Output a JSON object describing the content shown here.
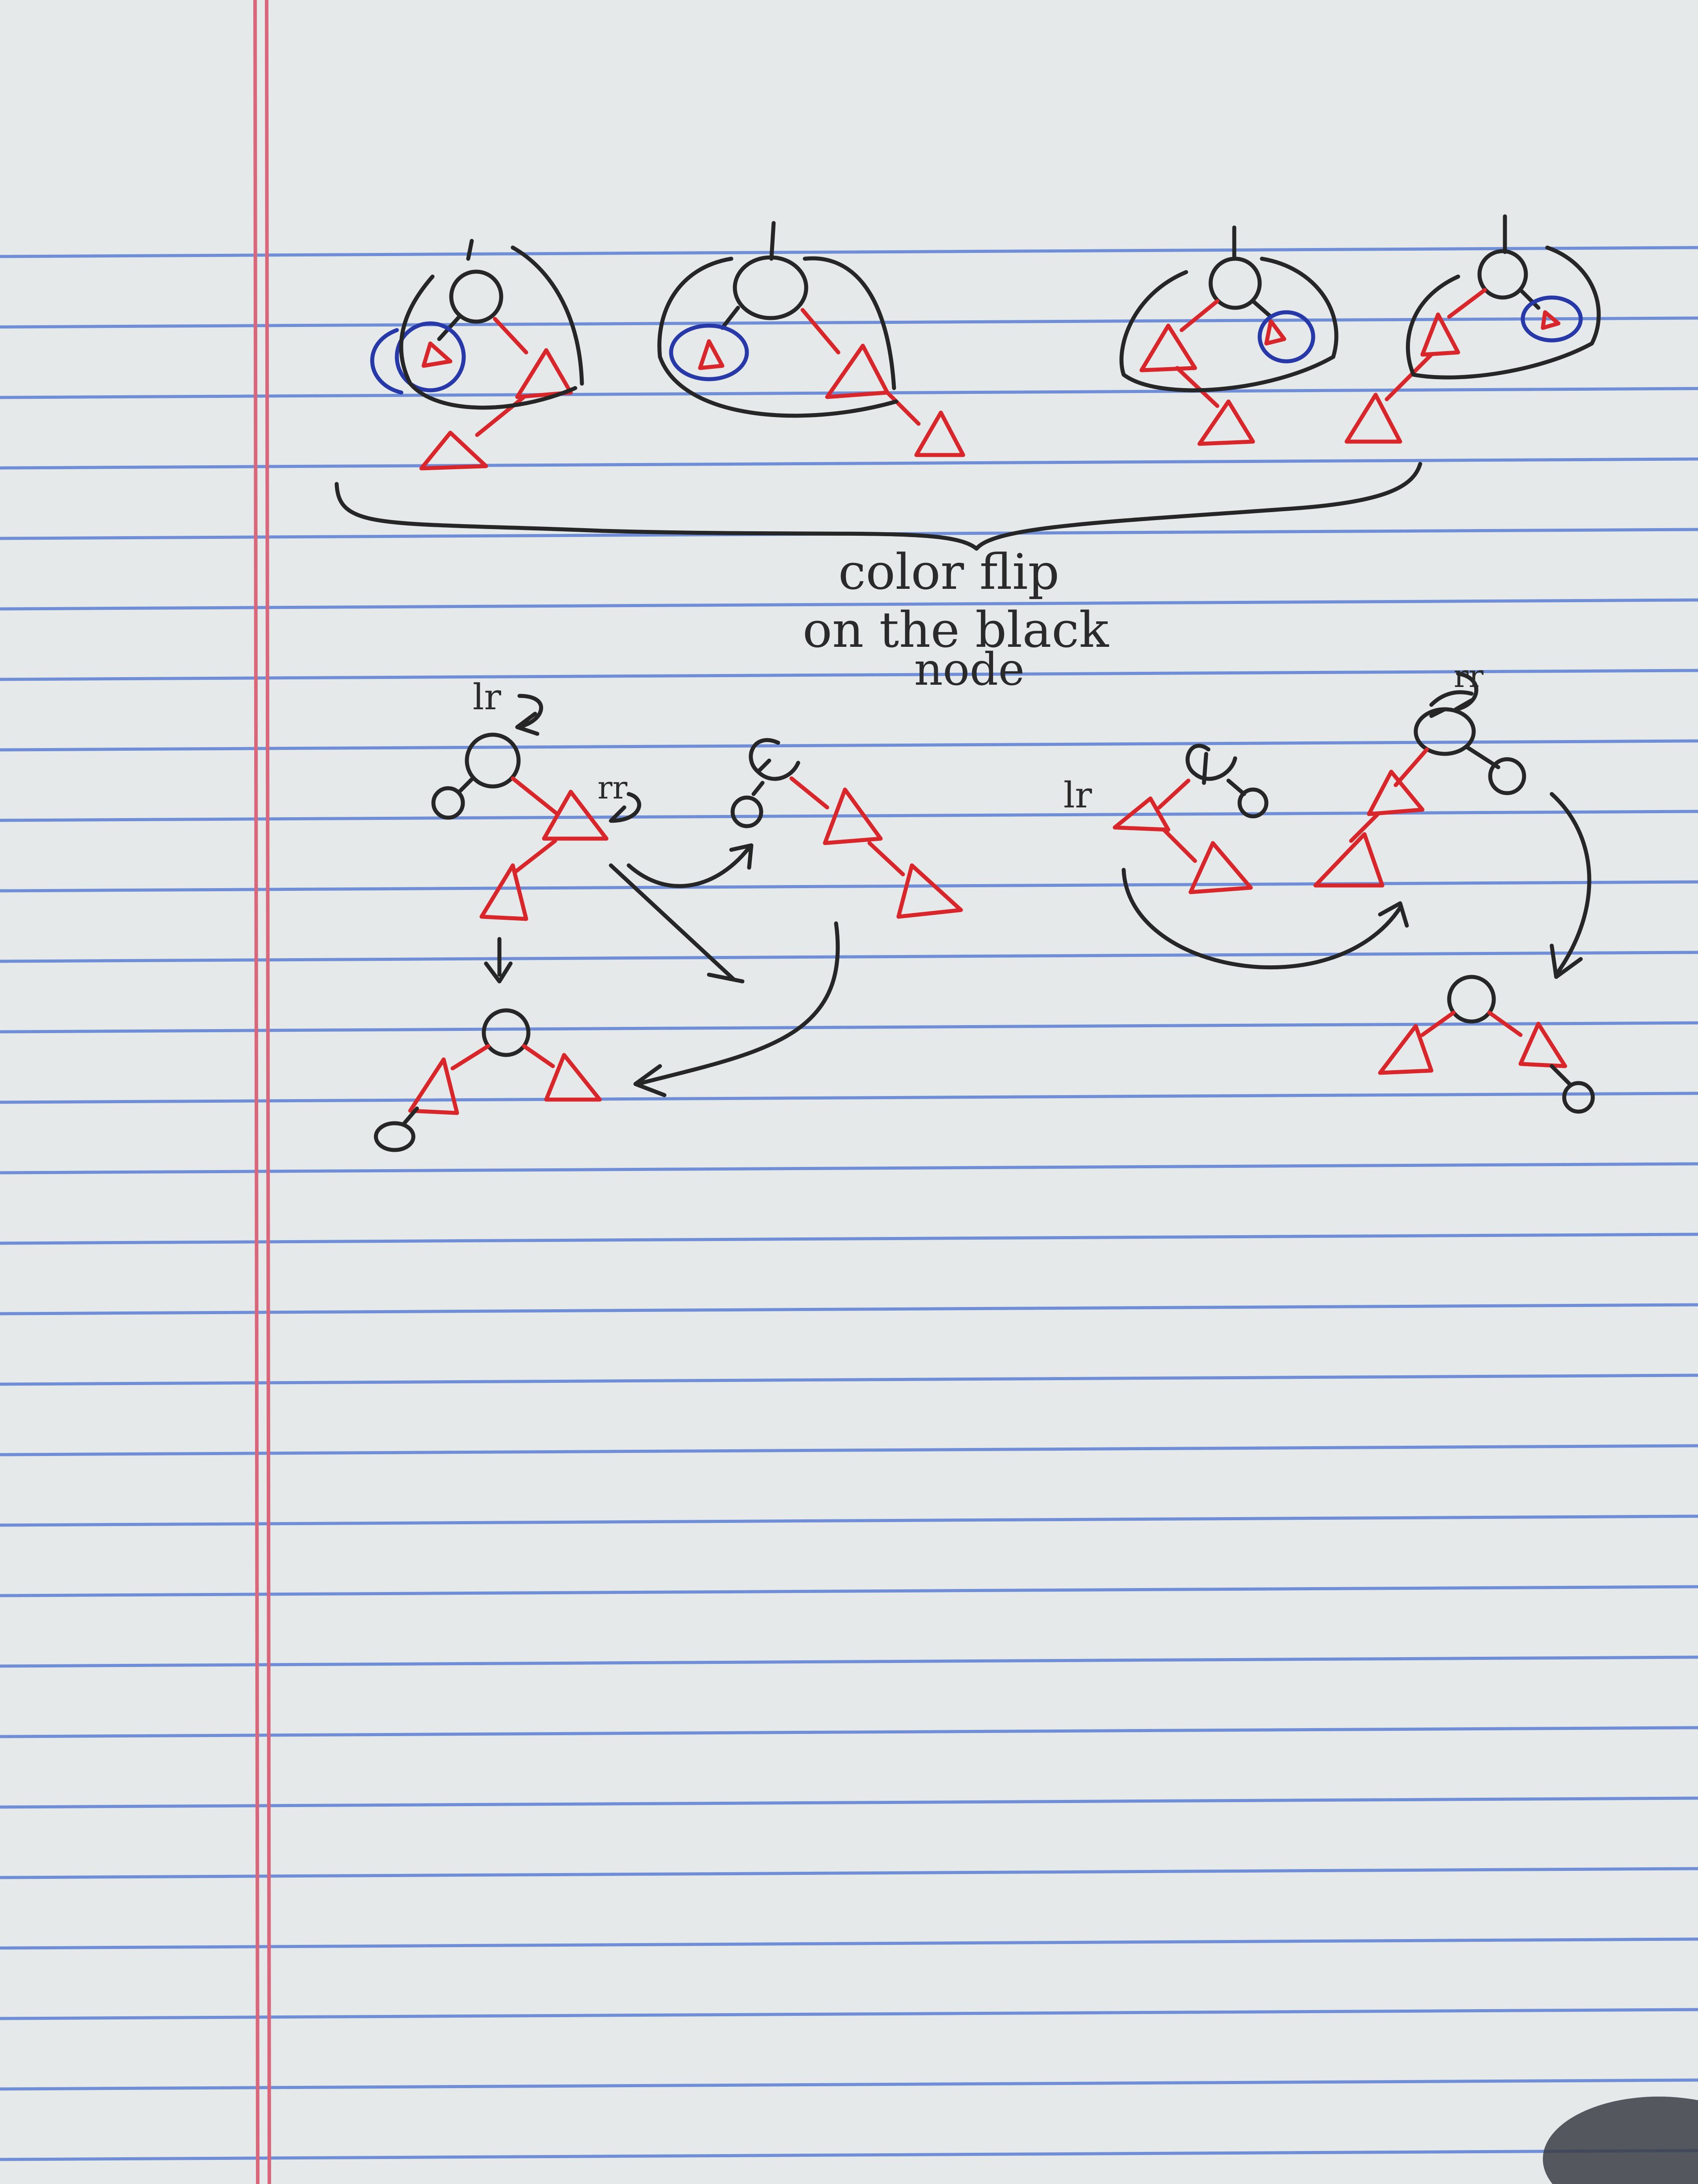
{
  "page": {
    "paper_color": "#e6e9ea",
    "rule_color": "#5b7fd4",
    "margin_color": "#d9667a"
  },
  "ink": {
    "black": "#262626",
    "red": "#d9262b",
    "blue": "#2738a8"
  },
  "annotations": {
    "caption_line1": "color flip",
    "caption_line2": "on the black",
    "caption_line3": "node",
    "label_lr_left": "lr",
    "label_rr_left": "rr",
    "label_lr_right": "lr",
    "label_rr_right": "rr"
  }
}
